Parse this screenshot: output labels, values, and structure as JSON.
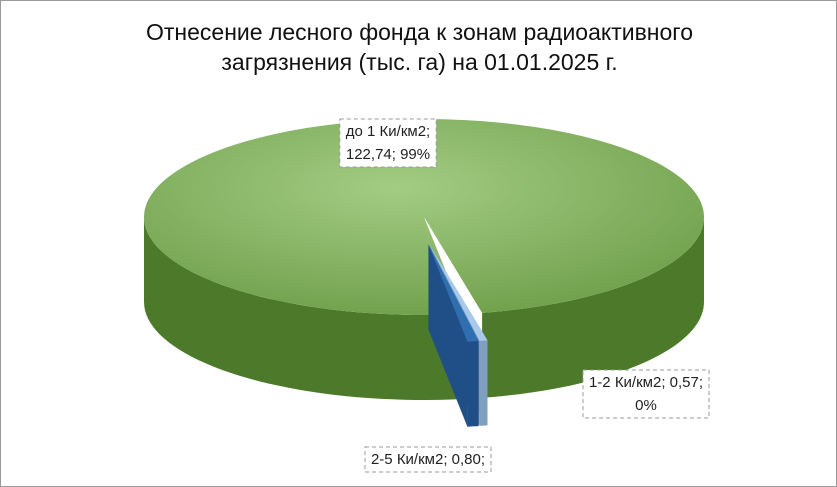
{
  "chart_data": {
    "type": "pie",
    "title": "Отнесение лесного фонда к зонам радиоактивного загрязнения  (тыс. га) на 01.01.2025 г.",
    "values": [
      122.74,
      0.57,
      0.8
    ],
    "value_labels": [
      [
        "до 1 Ки/км2;",
        "122,74; 99%"
      ],
      [
        "1-2 Ки/км2; 0,57;",
        "0%"
      ],
      [
        "2-5 Ки/км2; 0,80;"
      ]
    ],
    "colors": [
      "#86b562",
      "#a9c9ea",
      "#2f6fb0"
    ],
    "side_colors": [
      "#4c7a2a",
      "#7f9fbf",
      "#1f4f86"
    ]
  }
}
